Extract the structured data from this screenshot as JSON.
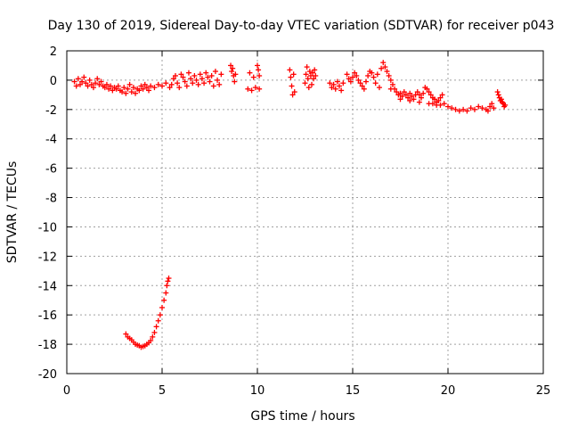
{
  "chart_data": {
    "type": "scatter",
    "title": "Day 130 of 2019, Sidereal Day-to-day VTEC variation (SDTVAR) for receiver p043",
    "xlabel": "GPS time / hours",
    "ylabel": "SDTVAR / TECUs",
    "xlim": [
      0,
      25
    ],
    "ylim": [
      -20,
      2
    ],
    "xticks": [
      0,
      5,
      10,
      15,
      20,
      25
    ],
    "xtick_labels": [
      "0",
      "5",
      "10",
      "15",
      "20",
      "25"
    ],
    "yticks": [
      2,
      0,
      -2,
      -4,
      -6,
      -8,
      -10,
      -12,
      -14,
      -16,
      -18,
      -20
    ],
    "ytick_labels": [
      "2",
      "0",
      "-2",
      "-4",
      "-6",
      "-8",
      "-10",
      "-12",
      "-14",
      "-16",
      "-18",
      "-20"
    ],
    "grid": true,
    "marker": "+",
    "color": "#ff0000",
    "series": [
      {
        "name": "SDTVAR",
        "points": [
          [
            0.4,
            -0.1
          ],
          [
            0.5,
            -0.4
          ],
          [
            0.6,
            0.1
          ],
          [
            0.7,
            -0.3
          ],
          [
            0.8,
            -0.1
          ],
          [
            0.9,
            0.2
          ],
          [
            1.0,
            -0.2
          ],
          [
            1.1,
            -0.4
          ],
          [
            1.2,
            0.0
          ],
          [
            1.3,
            -0.3
          ],
          [
            1.4,
            -0.5
          ],
          [
            1.5,
            -0.2
          ],
          [
            1.6,
            0.1
          ],
          [
            1.7,
            -0.3
          ],
          [
            1.8,
            -0.1
          ],
          [
            1.9,
            -0.4
          ],
          [
            2.0,
            -0.5
          ],
          [
            2.1,
            -0.3
          ],
          [
            2.2,
            -0.6
          ],
          [
            2.3,
            -0.4
          ],
          [
            2.4,
            -0.7
          ],
          [
            2.5,
            -0.5
          ],
          [
            2.6,
            -0.6
          ],
          [
            2.7,
            -0.4
          ],
          [
            2.8,
            -0.7
          ],
          [
            2.9,
            -0.8
          ],
          [
            3.0,
            -0.5
          ],
          [
            3.1,
            -0.9
          ],
          [
            3.2,
            -0.6
          ],
          [
            3.3,
            -0.3
          ],
          [
            3.4,
            -0.8
          ],
          [
            3.5,
            -0.5
          ],
          [
            3.6,
            -0.9
          ],
          [
            3.7,
            -0.6
          ],
          [
            3.8,
            -0.7
          ],
          [
            3.9,
            -0.4
          ],
          [
            4.0,
            -0.6
          ],
          [
            4.1,
            -0.3
          ],
          [
            4.2,
            -0.5
          ],
          [
            4.3,
            -0.7
          ],
          [
            4.4,
            -0.4
          ],
          [
            4.6,
            -0.5
          ],
          [
            4.8,
            -0.3
          ],
          [
            5.0,
            -0.4
          ],
          [
            5.2,
            -0.2
          ],
          [
            5.4,
            -0.5
          ],
          [
            5.5,
            -0.3
          ],
          [
            5.6,
            0.1
          ],
          [
            5.7,
            0.3
          ],
          [
            5.8,
            -0.2
          ],
          [
            5.9,
            -0.5
          ],
          [
            6.0,
            0.4
          ],
          [
            6.1,
            0.2
          ],
          [
            6.2,
            -0.1
          ],
          [
            6.3,
            -0.4
          ],
          [
            6.4,
            0.5
          ],
          [
            6.5,
            0.1
          ],
          [
            6.6,
            -0.2
          ],
          [
            6.7,
            0.3
          ],
          [
            6.8,
            0.0
          ],
          [
            6.9,
            -0.3
          ],
          [
            7.0,
            0.4
          ],
          [
            7.1,
            0.1
          ],
          [
            7.2,
            -0.2
          ],
          [
            7.3,
            0.5
          ],
          [
            7.4,
            0.2
          ],
          [
            7.5,
            -0.1
          ],
          [
            7.6,
            0.3
          ],
          [
            7.7,
            -0.4
          ],
          [
            7.8,
            0.6
          ],
          [
            7.9,
            0.0
          ],
          [
            8.0,
            -0.3
          ],
          [
            8.1,
            0.4
          ],
          [
            8.6,
            1.0
          ],
          [
            8.65,
            0.6
          ],
          [
            8.7,
            0.8
          ],
          [
            8.75,
            0.3
          ],
          [
            8.8,
            -0.1
          ],
          [
            8.85,
            0.4
          ],
          [
            9.5,
            -0.6
          ],
          [
            9.6,
            0.5
          ],
          [
            9.7,
            -0.7
          ],
          [
            9.8,
            0.2
          ],
          [
            9.9,
            -0.5
          ],
          [
            10.0,
            1.0
          ],
          [
            10.05,
            0.7
          ],
          [
            10.1,
            0.3
          ],
          [
            10.1,
            -0.6
          ],
          [
            11.7,
            0.7
          ],
          [
            11.75,
            0.2
          ],
          [
            11.8,
            -0.4
          ],
          [
            11.85,
            -1.0
          ],
          [
            11.9,
            0.4
          ],
          [
            11.95,
            -0.8
          ],
          [
            12.5,
            -0.2
          ],
          [
            12.55,
            0.4
          ],
          [
            12.6,
            0.9
          ],
          [
            12.65,
            0.1
          ],
          [
            12.7,
            -0.5
          ],
          [
            12.75,
            0.6
          ],
          [
            12.8,
            0.3
          ],
          [
            12.85,
            -0.3
          ],
          [
            12.9,
            0.5
          ],
          [
            12.95,
            0.1
          ],
          [
            13.0,
            0.7
          ],
          [
            13.05,
            0.3
          ],
          [
            13.8,
            -0.2
          ],
          [
            13.9,
            -0.5
          ],
          [
            14.0,
            -0.3
          ],
          [
            14.1,
            -0.6
          ],
          [
            14.2,
            -0.1
          ],
          [
            14.3,
            -0.4
          ],
          [
            14.4,
            -0.7
          ],
          [
            14.5,
            -0.2
          ],
          [
            14.7,
            0.4
          ],
          [
            14.8,
            0.1
          ],
          [
            14.9,
            -0.1
          ],
          [
            15.0,
            0.2
          ],
          [
            15.1,
            0.5
          ],
          [
            15.2,
            0.3
          ],
          [
            15.3,
            0.0
          ],
          [
            15.4,
            -0.2
          ],
          [
            15.5,
            -0.4
          ],
          [
            15.6,
            -0.6
          ],
          [
            15.7,
            -0.1
          ],
          [
            15.8,
            0.3
          ],
          [
            15.9,
            0.6
          ],
          [
            16.0,
            0.5
          ],
          [
            16.1,
            0.2
          ],
          [
            16.2,
            -0.2
          ],
          [
            16.3,
            0.4
          ],
          [
            16.4,
            -0.5
          ],
          [
            16.5,
            0.8
          ],
          [
            16.6,
            1.2
          ],
          [
            16.7,
            0.9
          ],
          [
            16.8,
            0.6
          ],
          [
            16.9,
            0.3
          ],
          [
            17.0,
            0.0
          ],
          [
            17.1,
            -0.3
          ],
          [
            17.2,
            -0.6
          ],
          [
            17.3,
            -0.8
          ],
          [
            17.4,
            -1.0
          ],
          [
            17.5,
            -0.9
          ],
          [
            17.6,
            -1.1
          ],
          [
            17.7,
            -0.8
          ],
          [
            17.8,
            -1.0
          ],
          [
            17.9,
            -1.2
          ],
          [
            18.0,
            -0.9
          ],
          [
            18.1,
            -1.1
          ],
          [
            18.2,
            -1.3
          ],
          [
            18.3,
            -1.0
          ],
          [
            18.4,
            -0.8
          ],
          [
            18.5,
            -1.0
          ],
          [
            18.6,
            -1.2
          ],
          [
            18.7,
            -0.9
          ],
          [
            18.8,
            -0.5
          ],
          [
            18.9,
            -0.6
          ],
          [
            19.0,
            -0.8
          ],
          [
            19.1,
            -1.0
          ],
          [
            19.2,
            -1.2
          ],
          [
            19.3,
            -1.3
          ],
          [
            19.4,
            -1.5
          ],
          [
            19.5,
            -1.4
          ],
          [
            19.6,
            -1.2
          ],
          [
            19.7,
            -1.0
          ],
          [
            17.0,
            -0.6
          ],
          [
            17.5,
            -1.3
          ],
          [
            18.0,
            -1.4
          ],
          [
            18.5,
            -1.5
          ],
          [
            19.0,
            -1.6
          ],
          [
            19.2,
            -1.6
          ],
          [
            19.4,
            -1.7
          ],
          [
            19.6,
            -1.7
          ],
          [
            19.8,
            -1.6
          ],
          [
            20.0,
            -1.8
          ],
          [
            20.2,
            -1.9
          ],
          [
            20.4,
            -2.0
          ],
          [
            20.6,
            -2.1
          ],
          [
            20.8,
            -2.0
          ],
          [
            21.0,
            -2.1
          ],
          [
            21.2,
            -1.9
          ],
          [
            21.4,
            -2.0
          ],
          [
            21.6,
            -1.8
          ],
          [
            21.8,
            -1.9
          ],
          [
            22.0,
            -2.0
          ],
          [
            22.1,
            -2.1
          ],
          [
            22.2,
            -1.8
          ],
          [
            22.3,
            -1.6
          ],
          [
            22.4,
            -1.9
          ],
          [
            22.6,
            -0.8
          ],
          [
            22.65,
            -1.0
          ],
          [
            22.7,
            -1.2
          ],
          [
            22.75,
            -1.4
          ],
          [
            22.8,
            -1.3
          ],
          [
            22.85,
            -1.5
          ],
          [
            22.9,
            -1.6
          ],
          [
            22.95,
            -1.8
          ],
          [
            23.0,
            -1.7
          ],
          [
            3.1,
            -17.3
          ],
          [
            3.2,
            -17.5
          ],
          [
            3.3,
            -17.6
          ],
          [
            3.4,
            -17.7
          ],
          [
            3.5,
            -17.85
          ],
          [
            3.6,
            -18.0
          ],
          [
            3.7,
            -18.05
          ],
          [
            3.8,
            -18.1
          ],
          [
            3.9,
            -18.2
          ],
          [
            4.0,
            -18.15
          ],
          [
            4.1,
            -18.1
          ],
          [
            4.2,
            -18.0
          ],
          [
            4.3,
            -17.9
          ],
          [
            4.4,
            -17.75
          ],
          [
            4.5,
            -17.5
          ],
          [
            4.6,
            -17.2
          ],
          [
            4.7,
            -16.8
          ],
          [
            4.8,
            -16.4
          ],
          [
            4.9,
            -16.0
          ],
          [
            5.0,
            -15.5
          ],
          [
            5.1,
            -15.0
          ],
          [
            5.2,
            -14.5
          ],
          [
            5.25,
            -14.0
          ],
          [
            5.3,
            -13.7
          ],
          [
            5.35,
            -13.5
          ]
        ]
      }
    ]
  }
}
